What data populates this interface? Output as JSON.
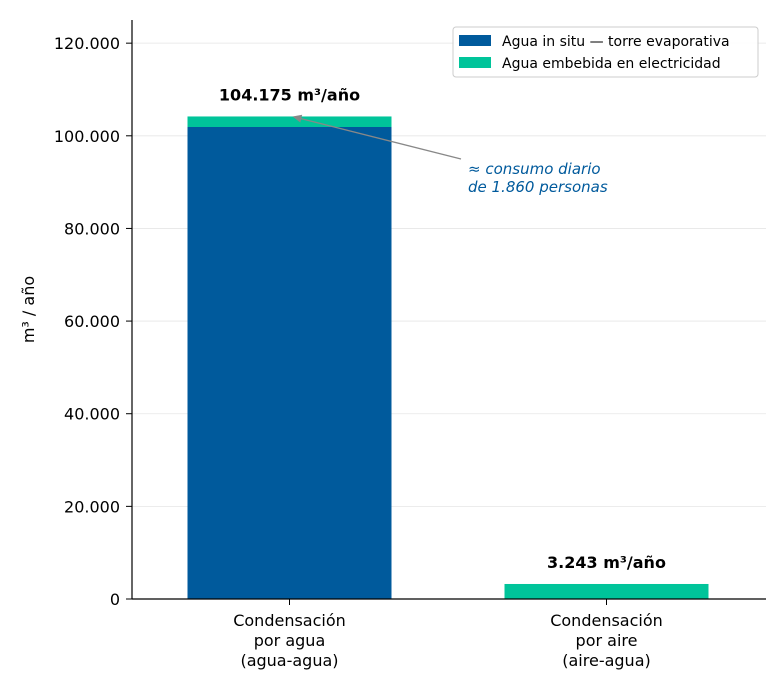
{
  "chart_data": {
    "type": "bar",
    "stacked": true,
    "categories": [
      [
        "Condensación",
        "por agua",
        "(agua-agua)"
      ],
      [
        "Condensación",
        "por aire",
        "(aire-agua)"
      ]
    ],
    "series": [
      {
        "name": "Agua in situ — torre evaporativa",
        "color": "#005a9c",
        "values": [
          101900,
          0
        ]
      },
      {
        "name": "Agua embebida en electricidad",
        "color": "#00c49a",
        "values": [
          2275,
          3243
        ]
      }
    ],
    "totals_labels": [
      "104.175 m³/año",
      "3.243 m³/año"
    ],
    "totals": [
      104175,
      3243
    ],
    "ylabel": "m³ / año",
    "ylim": [
      0,
      125000
    ],
    "yticks": [
      0,
      20000,
      40000,
      60000,
      80000,
      100000,
      120000
    ],
    "ytick_labels": [
      "0",
      "20.000",
      "40.000",
      "60.000",
      "80.000",
      "100.000",
      "120.000"
    ],
    "grid": true,
    "legend_position": "top-right",
    "annotation": {
      "lines": [
        "≈ consumo diario",
        "de 1.860 personas"
      ],
      "color": "#005a9c",
      "points_to_category": 0,
      "points_to_value": 104175
    }
  }
}
